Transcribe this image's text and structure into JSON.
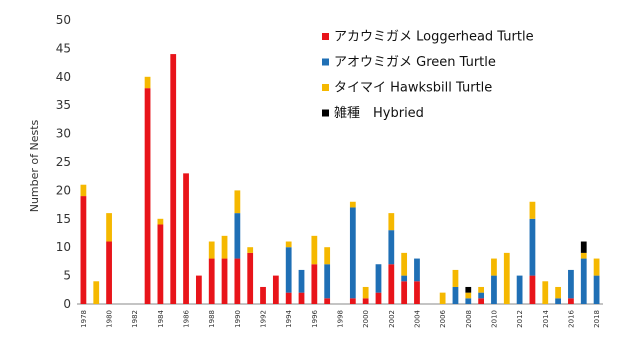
{
  "chart_data": {
    "type": "bar",
    "stacked": true,
    "ylabel": "Number of Nests",
    "ylim": [
      0,
      50
    ],
    "yticks": [
      0,
      5,
      10,
      15,
      20,
      25,
      30,
      35,
      40,
      45,
      50
    ],
    "x_labels_shown": [
      "1978",
      "1980",
      "1982",
      "1984",
      "1986",
      "1988",
      "1990",
      "1992",
      "1994",
      "1996",
      "1998",
      "2000",
      "2002",
      "2004",
      "2006",
      "2008",
      "2010",
      "2012",
      "2014",
      "2016",
      "2018"
    ],
    "legend_position": "top-right",
    "categories": [
      "1978",
      "1979",
      "1980",
      "1981",
      "1982",
      "1983",
      "1984",
      "1985",
      "1986",
      "1987",
      "1988",
      "1989",
      "1990",
      "1991",
      "1992",
      "1993",
      "1994",
      "1995",
      "1996",
      "1997",
      "1998",
      "1999",
      "2000",
      "2001",
      "2002",
      "2003",
      "2004",
      "2005",
      "2006",
      "2007",
      "2008",
      "2009",
      "2010",
      "2011",
      "2012",
      "2013",
      "2014",
      "2015",
      "2016",
      "2017",
      "2018"
    ],
    "series": [
      {
        "name": "アカウミガメ Loggerhead Turtle",
        "color": "#e8141a",
        "values": [
          19,
          0,
          11,
          0,
          0,
          38,
          14,
          44,
          23,
          5,
          8,
          8,
          8,
          9,
          3,
          5,
          2,
          2,
          7,
          1,
          0,
          1,
          1,
          2,
          7,
          4,
          4,
          0,
          0,
          0,
          0,
          1,
          0,
          0,
          0,
          5,
          0,
          0,
          1,
          0,
          0
        ]
      },
      {
        "name": "アオウミガメ Green Turtle",
        "color": "#1f6fb5",
        "values": [
          0,
          0,
          0,
          0,
          0,
          0,
          0,
          0,
          0,
          0,
          0,
          0,
          8,
          0,
          0,
          0,
          8,
          4,
          0,
          6,
          0,
          16,
          0,
          5,
          6,
          1,
          4,
          0,
          0,
          3,
          1,
          1,
          5,
          0,
          5,
          10,
          0,
          1,
          5,
          8,
          5
        ]
      },
      {
        "name": "タイマイ Hawksbill Turtle",
        "color": "#f5b800",
        "values": [
          2,
          4,
          5,
          0,
          0,
          2,
          1,
          0,
          0,
          0,
          3,
          4,
          4,
          1,
          0,
          0,
          1,
          0,
          5,
          3,
          0,
          1,
          2,
          0,
          3,
          4,
          0,
          0,
          2,
          3,
          1,
          1,
          3,
          9,
          0,
          3,
          4,
          2,
          0,
          1,
          3
        ]
      },
      {
        "name": "雑種　Hybried",
        "color": "#000000",
        "values": [
          0,
          0,
          0,
          0,
          0,
          0,
          0,
          0,
          0,
          0,
          0,
          0,
          0,
          0,
          0,
          0,
          0,
          0,
          0,
          0,
          0,
          0,
          0,
          0,
          0,
          0,
          0,
          0,
          0,
          0,
          1,
          0,
          0,
          0,
          0,
          0,
          0,
          0,
          0,
          2,
          0
        ]
      }
    ]
  }
}
